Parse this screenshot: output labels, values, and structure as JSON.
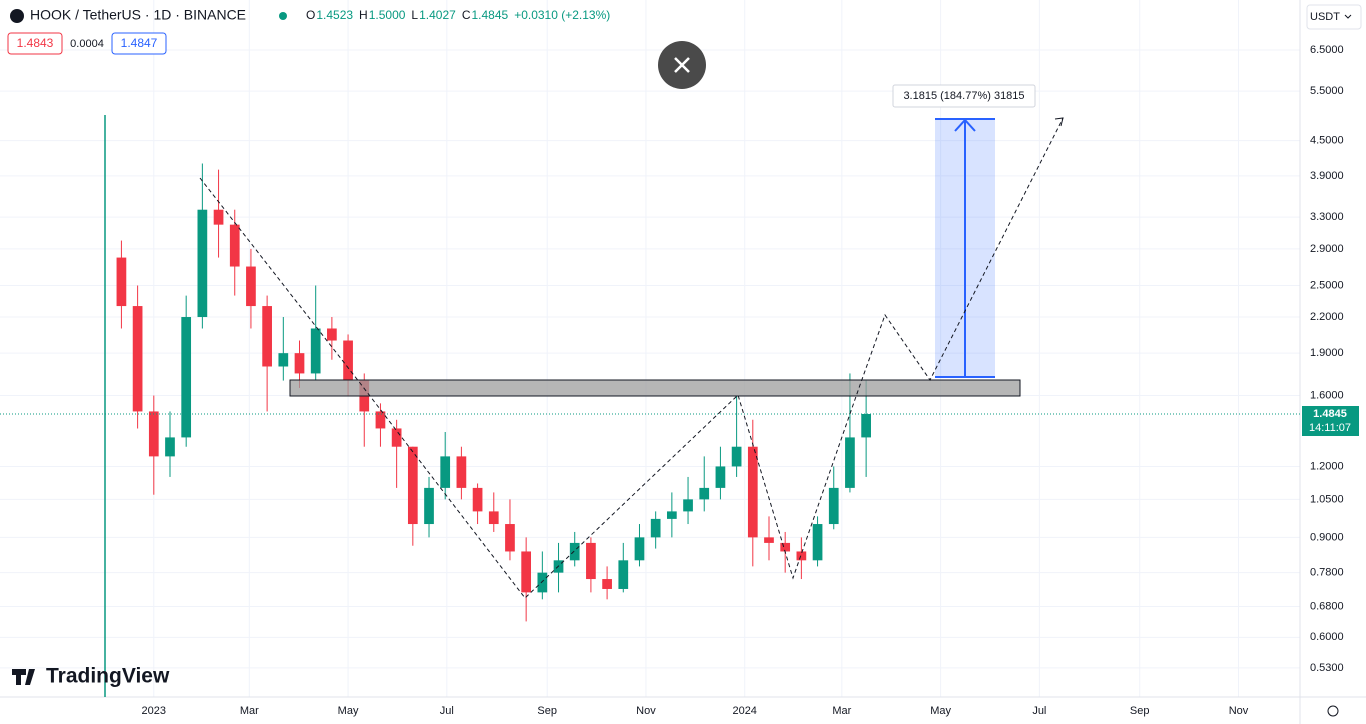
{
  "header": {
    "symbol": "HOOK / TetherUS · 1D · BINANCE",
    "ohlc": [
      {
        "label": "O",
        "value": "1.4523"
      },
      {
        "label": "H",
        "value": "1.5000"
      },
      {
        "label": "L",
        "value": "1.4027"
      },
      {
        "label": "C",
        "value": "1.4845"
      }
    ],
    "change": "+0.0310 (+2.13%)",
    "bid": "1.4843",
    "spread": "0.0004",
    "ask": "1.4847",
    "currency": "USDT"
  },
  "price_tag": {
    "price": "1.4845",
    "countdown": "14:11:07"
  },
  "measure_label": "3.1815 (184.77%) 31815",
  "brand": "TradingView",
  "chart_data": {
    "type": "candlestick",
    "log_scale": true,
    "grid": true,
    "up_color": "#089981",
    "down_color": "#f23645",
    "x": [
      -20,
      -10,
      0,
      10,
      20,
      30,
      40,
      50,
      60,
      70,
      80,
      90,
      100,
      110,
      120,
      130,
      140,
      150,
      160,
      170,
      180,
      190,
      200,
      210,
      220,
      230,
      240,
      250,
      260,
      270,
      280,
      290,
      300,
      310,
      320,
      330,
      340,
      350,
      360,
      370,
      380,
      390,
      400,
      410,
      420,
      430,
      440
    ],
    "open": [
      2.8,
      2.3,
      1.5,
      1.25,
      1.35,
      2.2,
      3.4,
      3.2,
      2.7,
      2.3,
      1.8,
      1.9,
      1.75,
      2.1,
      2.0,
      1.7,
      1.5,
      1.4,
      1.3,
      0.95,
      1.1,
      1.25,
      1.1,
      1.0,
      0.95,
      0.85,
      0.72,
      0.78,
      0.82,
      0.88,
      0.76,
      0.73,
      0.82,
      0.9,
      0.97,
      1.0,
      1.05,
      1.1,
      1.2,
      1.3,
      0.9,
      0.88,
      0.85,
      0.82,
      0.95,
      1.1,
      1.35
    ],
    "high": [
      3.0,
      2.5,
      1.6,
      1.5,
      2.4,
      4.1,
      4.0,
      3.4,
      2.9,
      2.4,
      2.2,
      2.0,
      2.5,
      2.2,
      2.05,
      1.75,
      1.55,
      1.45,
      1.3,
      1.15,
      1.38,
      1.3,
      1.12,
      1.08,
      1.05,
      0.9,
      0.85,
      0.88,
      0.92,
      0.9,
      0.8,
      0.88,
      0.95,
      1.0,
      1.08,
      1.15,
      1.25,
      1.3,
      1.6,
      1.45,
      0.98,
      0.92,
      0.9,
      0.98,
      1.2,
      1.75,
      1.7
    ],
    "low": [
      2.1,
      1.4,
      1.07,
      1.15,
      1.3,
      2.1,
      2.8,
      2.4,
      2.1,
      1.5,
      1.7,
      1.65,
      1.7,
      1.85,
      1.6,
      1.3,
      1.3,
      1.1,
      0.87,
      0.9,
      1.05,
      1.05,
      0.95,
      0.92,
      0.82,
      0.64,
      0.7,
      0.72,
      0.8,
      0.72,
      0.7,
      0.72,
      0.8,
      0.86,
      0.9,
      0.95,
      1.0,
      1.05,
      1.15,
      0.8,
      0.82,
      0.78,
      0.76,
      0.8,
      0.93,
      1.08,
      1.15
    ],
    "close": [
      2.3,
      1.5,
      1.25,
      1.35,
      2.2,
      3.4,
      3.2,
      2.7,
      2.3,
      1.8,
      1.9,
      1.75,
      2.1,
      2.0,
      1.7,
      1.5,
      1.4,
      1.3,
      0.95,
      1.1,
      1.25,
      1.1,
      1.0,
      0.95,
      0.85,
      0.72,
      0.78,
      0.82,
      0.88,
      0.76,
      0.73,
      0.82,
      0.9,
      0.97,
      1.0,
      1.05,
      1.1,
      1.2,
      1.3,
      0.9,
      0.88,
      0.85,
      0.82,
      0.95,
      1.1,
      1.35,
      1.4845
    ],
    "xlim": [
      -95,
      708
    ],
    "xticks": [
      {
        "value": 0,
        "label": "2023"
      },
      {
        "value": 59,
        "label": "Mar"
      },
      {
        "value": 120,
        "label": "May"
      },
      {
        "value": 181,
        "label": "Jul"
      },
      {
        "value": 243,
        "label": "Sep"
      },
      {
        "value": 304,
        "label": "Nov"
      },
      {
        "value": 365,
        "label": "2024"
      },
      {
        "value": 425,
        "label": "Mar"
      },
      {
        "value": 486,
        "label": "May"
      },
      {
        "value": 547,
        "label": "Jul"
      },
      {
        "value": 609,
        "label": "Sep"
      },
      {
        "value": 670,
        "label": "Nov"
      }
    ],
    "ylim": [
      0.471,
      7.96
    ],
    "yticks": [
      {
        "value": 6.5,
        "label": "6.5000"
      },
      {
        "value": 5.5,
        "label": "5.5000"
      },
      {
        "value": 4.5,
        "label": "4.5000"
      },
      {
        "value": 3.9,
        "label": "3.9000"
      },
      {
        "value": 3.3,
        "label": "3.3000"
      },
      {
        "value": 2.9,
        "label": "2.9000"
      },
      {
        "value": 2.5,
        "label": "2.5000"
      },
      {
        "value": 2.2,
        "label": "2.2000"
      },
      {
        "value": 1.9,
        "label": "1.9000"
      },
      {
        "value": 1.6,
        "label": "1.6000"
      },
      {
        "value": 1.2,
        "label": "1.2000"
      },
      {
        "value": 1.05,
        "label": "1.0500"
      },
      {
        "value": 0.9,
        "label": "0.9000"
      },
      {
        "value": 0.78,
        "label": "0.7800"
      },
      {
        "value": 0.68,
        "label": "0.6800"
      },
      {
        "value": 0.6,
        "label": "0.6000"
      },
      {
        "value": 0.53,
        "label": "0.5300"
      }
    ],
    "last_price": 1.4845
  }
}
